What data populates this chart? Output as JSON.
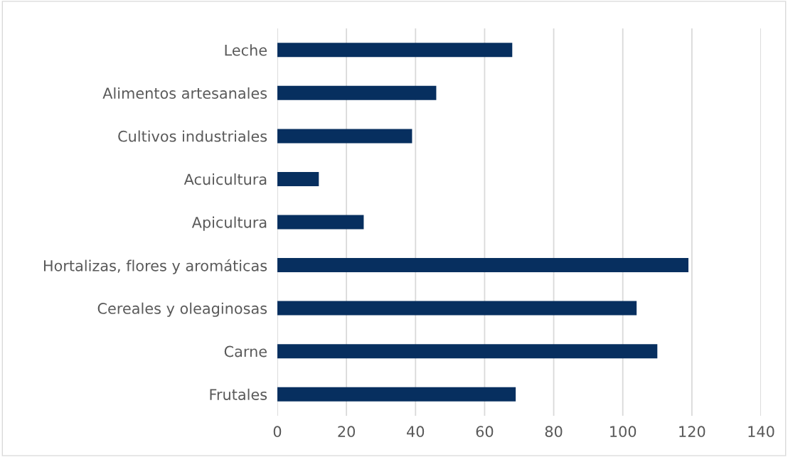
{
  "chart_data": {
    "type": "bar",
    "orientation": "horizontal",
    "categories": [
      "Leche",
      "Alimentos artesanales",
      "Cultivos industriales",
      "Acuicultura",
      "Apicultura",
      "Hortalizas, flores y aromáticas",
      "Cereales y oleaginosas",
      "Carne",
      "Frutales"
    ],
    "values": [
      68,
      46,
      39,
      12,
      25,
      119,
      104,
      110,
      69
    ],
    "color": "#072f5f",
    "xlim": [
      0,
      140
    ],
    "xticks": [
      0,
      20,
      40,
      60,
      80,
      100,
      120,
      140
    ],
    "grid": "x",
    "legend": false
  }
}
